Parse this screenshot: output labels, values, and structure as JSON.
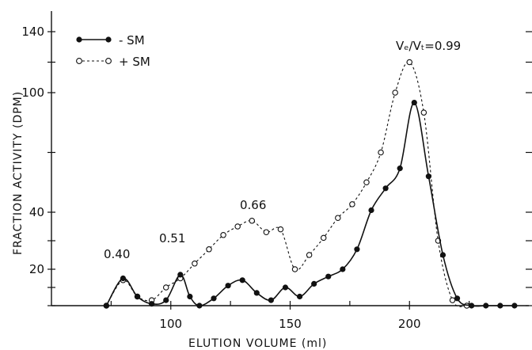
{
  "chart_data": {
    "type": "line",
    "xlabel": "ELUTION  VOLUME (ml)",
    "ylabel": "FRACTION ACTIVITY (DPM)",
    "x_ticks": [
      100,
      150,
      200
    ],
    "y_ticks": [
      "20",
      "40",
      "100",
      "140"
    ],
    "xlim": [
      50,
      250
    ],
    "y_scale": "categorical-nonlinear",
    "series": [
      {
        "name": "- SM",
        "marker": "filled-circle",
        "line_style": "solid",
        "x": [
          73,
          80,
          86,
          92,
          98,
          104,
          108,
          112,
          118,
          124,
          130,
          136,
          142,
          148,
          154,
          160,
          166,
          172,
          178,
          184,
          190,
          196,
          202,
          208,
          214,
          220,
          226,
          232,
          238,
          244
        ],
        "y": [
          0,
          15,
          5,
          1,
          3,
          17,
          5,
          0,
          4,
          11,
          14,
          7,
          3,
          10,
          5,
          12,
          16,
          20,
          27,
          41,
          52,
          62,
          95,
          58,
          25,
          4,
          0,
          0,
          0,
          0
        ]
      },
      {
        "name": "+ SM",
        "marker": "open-circle",
        "line_style": "dashed",
        "x": [
          73,
          80,
          86,
          92,
          98,
          104,
          110,
          116,
          122,
          128,
          134,
          140,
          146,
          152,
          158,
          164,
          170,
          176,
          182,
          188,
          194,
          200,
          206,
          212,
          218,
          224
        ],
        "y": [
          0,
          14,
          5,
          3,
          10,
          15,
          22,
          27,
          32,
          35,
          37,
          33,
          34,
          20,
          25,
          31,
          38,
          44,
          55,
          70,
          100,
          120,
          90,
          30,
          3,
          0
        ]
      }
    ],
    "annotations": [
      "0.40",
      "0.51",
      "0.66",
      "Vₑ/Vₜ=0.99"
    ],
    "legend": {
      "position": "top-left",
      "entries": [
        "- SM",
        "+ SM"
      ]
    },
    "grid": false
  }
}
